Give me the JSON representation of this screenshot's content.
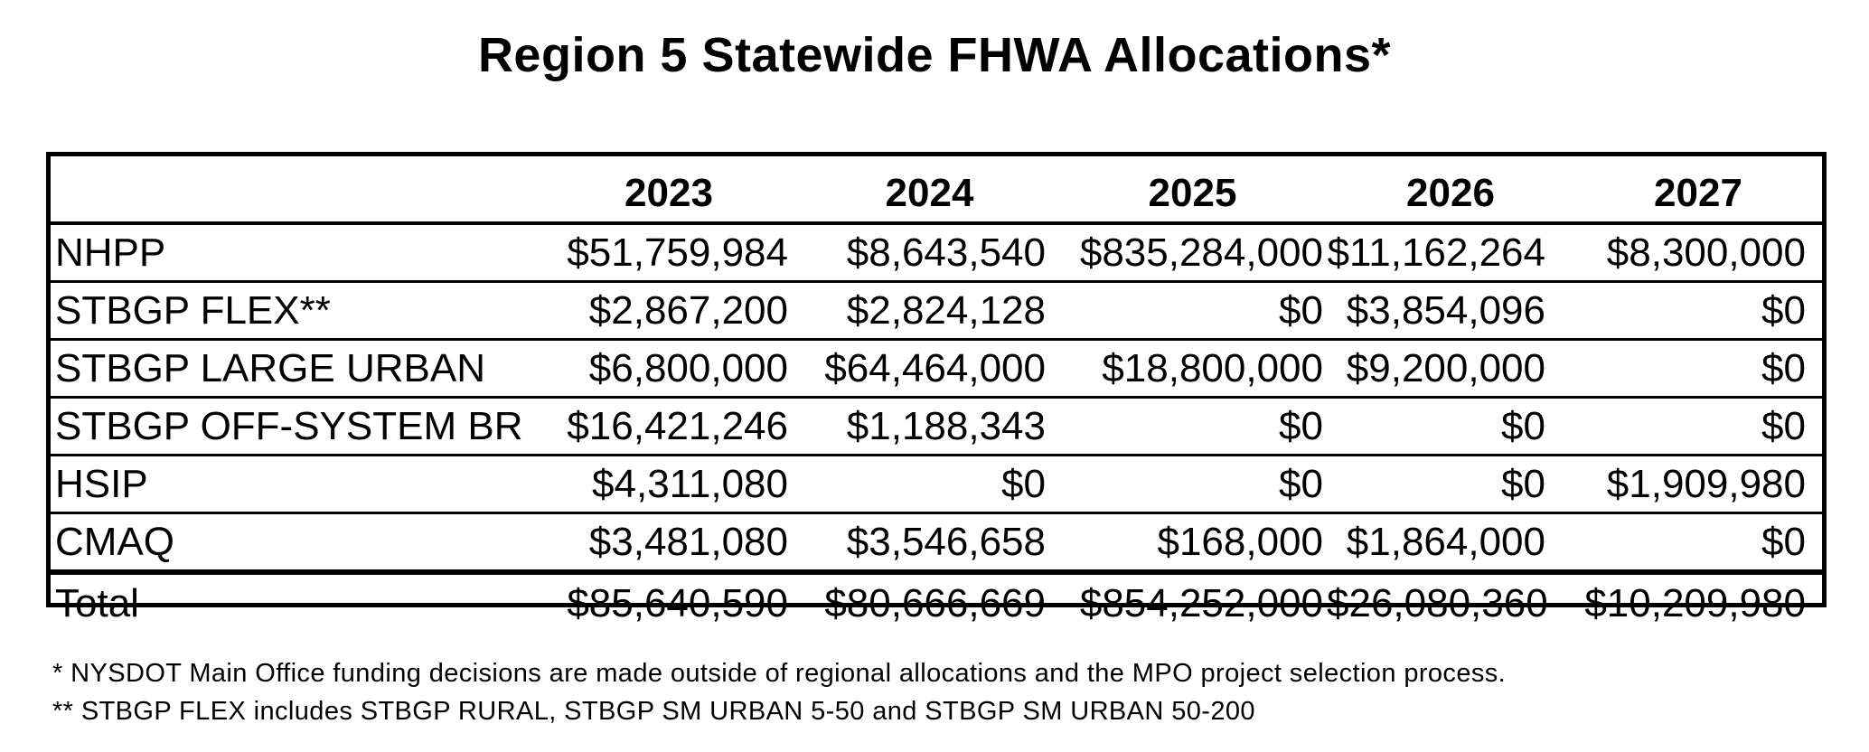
{
  "document": {
    "title": "Region 5 Statewide FHWA Allocations*",
    "table": {
      "columns": [
        "",
        "2023",
        "2024",
        "2025",
        "2026",
        "2027"
      ],
      "rows": [
        {
          "label": "NHPP",
          "values": [
            "$51,759,984",
            "$8,643,540",
            "$835,284,000",
            "$11,162,264",
            "$8,300,000"
          ]
        },
        {
          "label": "STBGP FLEX**",
          "values": [
            "$2,867,200",
            "$2,824,128",
            "$0",
            "$3,854,096",
            "$0"
          ]
        },
        {
          "label": "STBGP LARGE URBAN",
          "values": [
            "$6,800,000",
            "$64,464,000",
            "$18,800,000",
            "$9,200,000",
            "$0"
          ]
        },
        {
          "label": "STBGP OFF-SYSTEM BR",
          "values": [
            "$16,421,246",
            "$1,188,343",
            "$0",
            "$0",
            "$0"
          ]
        },
        {
          "label": "HSIP",
          "values": [
            "$4,311,080",
            "$0",
            "$0",
            "$0",
            "$1,909,980"
          ]
        },
        {
          "label": "CMAQ",
          "values": [
            "$3,481,080",
            "$3,546,658",
            "$168,000",
            "$1,864,000",
            "$0"
          ]
        }
      ],
      "total": {
        "label": "Total",
        "values": [
          "$85,640,590",
          "$80,666,669",
          "$854,252,000",
          "$26,080,360",
          "$10,209,980"
        ]
      }
    },
    "footnotes": [
      "* NYSDOT Main Office funding decisions are made outside of regional allocations and the MPO project selection process.",
      "** STBGP FLEX includes STBGP RURAL, STBGP SM URBAN 5-50 and STBGP SM URBAN 50-200"
    ]
  }
}
